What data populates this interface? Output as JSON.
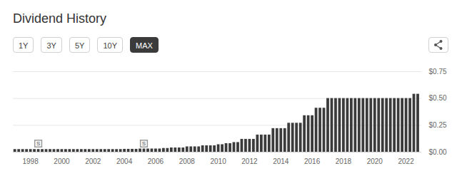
{
  "chart_data": {
    "type": "bar",
    "title": "Dividend History",
    "color": "#3b3b3b",
    "x": [
      1997,
      1997.25,
      1997.5,
      1997.75,
      1998,
      1998.25,
      1998.5,
      1998.75,
      1999,
      1999.25,
      1999.5,
      1999.75,
      2000,
      2000.25,
      2000.5,
      2000.75,
      2001,
      2001.25,
      2001.5,
      2001.75,
      2002,
      2002.25,
      2002.5,
      2002.75,
      2003,
      2003.25,
      2003.5,
      2003.75,
      2004,
      2004.25,
      2004.5,
      2004.75,
      2005,
      2005.25,
      2005.5,
      2005.75,
      2006,
      2006.25,
      2006.5,
      2006.75,
      2007,
      2007.25,
      2007.5,
      2007.75,
      2008,
      2008.25,
      2008.5,
      2008.75,
      2009,
      2009.25,
      2009.5,
      2009.75,
      2010,
      2010.25,
      2010.5,
      2010.75,
      2011,
      2011.25,
      2011.5,
      2011.75,
      2012,
      2012.25,
      2012.5,
      2012.75,
      2013,
      2013.25,
      2013.5,
      2013.75,
      2014,
      2014.25,
      2014.5,
      2014.75,
      2015,
      2015.25,
      2015.5,
      2015.75,
      2016,
      2016.25,
      2016.5,
      2016.75,
      2017,
      2017.25,
      2017.5,
      2017.75,
      2018,
      2018.25,
      2018.5,
      2018.75,
      2019,
      2019.25,
      2019.5,
      2019.75,
      2020,
      2020.25,
      2020.5,
      2020.75,
      2021,
      2021.25,
      2021.5,
      2021.75,
      2022,
      2022.25,
      2022.5,
      2022.75
    ],
    "values": [
      0.025,
      0.025,
      0.025,
      0.025,
      0.025,
      0.025,
      0.025,
      0.025,
      0.025,
      0.025,
      0.025,
      0.025,
      0.025,
      0.025,
      0.025,
      0.025,
      0.025,
      0.025,
      0.025,
      0.025,
      0.025,
      0.025,
      0.025,
      0.025,
      0.025,
      0.025,
      0.025,
      0.025,
      0.027,
      0.027,
      0.027,
      0.027,
      0.03,
      0.03,
      0.03,
      0.03,
      0.03,
      0.03,
      0.035,
      0.035,
      0.04,
      0.04,
      0.04,
      0.04,
      0.05,
      0.05,
      0.05,
      0.05,
      0.06,
      0.06,
      0.06,
      0.06,
      0.07,
      0.07,
      0.08,
      0.08,
      0.09,
      0.09,
      0.12,
      0.12,
      0.12,
      0.12,
      0.16,
      0.16,
      0.16,
      0.16,
      0.22,
      0.22,
      0.22,
      0.22,
      0.27,
      0.27,
      0.27,
      0.27,
      0.34,
      0.34,
      0.34,
      0.41,
      0.41,
      0.41,
      0.5,
      0.5,
      0.5,
      0.5,
      0.5,
      0.5,
      0.5,
      0.5,
      0.5,
      0.5,
      0.5,
      0.5,
      0.5,
      0.5,
      0.5,
      0.5,
      0.5,
      0.5,
      0.5,
      0.5,
      0.5,
      0.5,
      0.54,
      0.54
    ],
    "xlim": [
      1996.9,
      2023
    ],
    "xticks": [
      1998,
      2000,
      2002,
      2004,
      2006,
      2008,
      2010,
      2012,
      2014,
      2016,
      2018,
      2020,
      2022
    ],
    "ylim": [
      0,
      0.75
    ],
    "yticks": [
      {
        "value": 0,
        "label": "$0.00"
      },
      {
        "value": 0.25,
        "label": "$0.25"
      },
      {
        "value": 0.5,
        "label": "$0.50"
      },
      {
        "value": 0.75,
        "label": "$0.75"
      }
    ],
    "grid": true,
    "annotations": [
      {
        "x": 1998.5,
        "text": "S"
      },
      {
        "x": 2005.25,
        "text": "S"
      }
    ]
  },
  "controls": {
    "buttons": [
      "1Y",
      "3Y",
      "5Y",
      "10Y",
      "MAX"
    ],
    "selected": "MAX"
  }
}
